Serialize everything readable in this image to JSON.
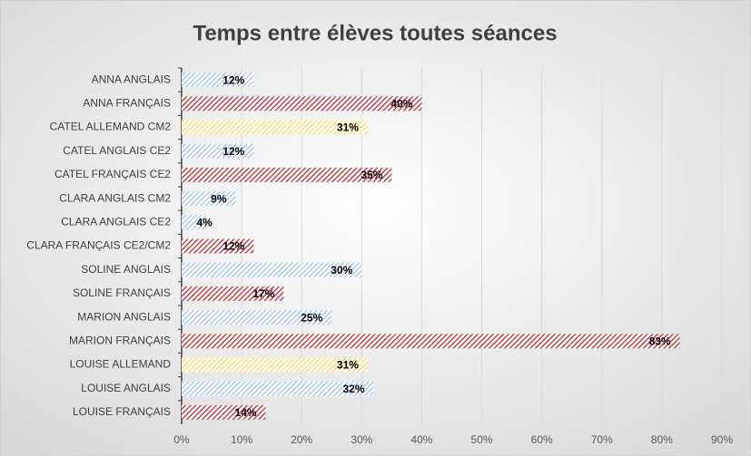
{
  "chart_data": {
    "type": "bar",
    "orientation": "horizontal",
    "title": "Temps entre élèves toutes séances",
    "categories": [
      "ANNA ANGLAIS",
      "ANNA FRANÇAIS",
      "CATEL ALLEMAND CM2",
      "CATEL ANGLAIS CE2",
      "CATEL FRANÇAIS CE2",
      "CLARA ANGLAIS CM2",
      "CLARA ANGLAIS CE2",
      "CLARA FRANÇAIS CE2/CM2",
      "SOLINE ANGLAIS",
      "SOLINE FRANÇAIS",
      "MARION ANGLAIS",
      "MARION FRANÇAIS",
      "LOUISE ALLEMAND",
      "LOUISE ANGLAIS",
      "LOUISE FRANÇAIS"
    ],
    "values": [
      12,
      40,
      31,
      12,
      35,
      9,
      4,
      12,
      30,
      17,
      25,
      83,
      31,
      32,
      14
    ],
    "value_labels": [
      "12%",
      "40%",
      "31%",
      "12%",
      "35%",
      "9%",
      "4%",
      "12%",
      "30%",
      "17%",
      "25%",
      "83%",
      "31%",
      "32%",
      "14%"
    ],
    "colors": [
      "#9dc3e6",
      "#c0282d",
      "#ffd966",
      "#9dc3e6",
      "#c0282d",
      "#9dc3e6",
      "#9dc3e6",
      "#c0282d",
      "#9dc3e6",
      "#c0282d",
      "#9dc3e6",
      "#c0282d",
      "#ffd966",
      "#9dc3e6",
      "#c0282d"
    ],
    "xlim": [
      0,
      90
    ],
    "xticks": [
      {
        "value": 0,
        "label": "0%"
      },
      {
        "value": 10,
        "label": "10%"
      },
      {
        "value": 20,
        "label": "20%"
      },
      {
        "value": 30,
        "label": "30%"
      },
      {
        "value": 40,
        "label": "40%"
      },
      {
        "value": 50,
        "label": "50%"
      },
      {
        "value": 60,
        "label": "60%"
      },
      {
        "value": 70,
        "label": "70%"
      },
      {
        "value": 80,
        "label": "80%"
      },
      {
        "value": 90,
        "label": "90%"
      }
    ],
    "grid": true
  }
}
